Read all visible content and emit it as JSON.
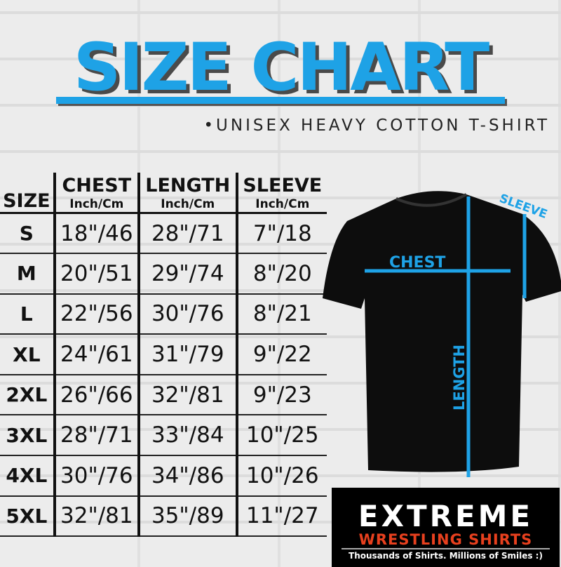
{
  "title": "SIZE CHART",
  "subtitle": "•UNISEX HEAVY COTTON T-SHIRT",
  "accent_color": "#1ea2e6",
  "table": {
    "size_header": "SIZE",
    "columns": [
      {
        "label": "CHEST",
        "unit": "Inch/Cm"
      },
      {
        "label": "LENGTH",
        "unit": "Inch/Cm"
      },
      {
        "label": "SLEEVE",
        "unit": "Inch/Cm"
      }
    ],
    "rows": [
      {
        "size": "S",
        "chest": "18\"/46",
        "length": "28\"/71",
        "sleeve": "7\"/18"
      },
      {
        "size": "M",
        "chest": "20\"/51",
        "length": "29\"/74",
        "sleeve": "8\"/20"
      },
      {
        "size": "L",
        "chest": "22\"/56",
        "length": "30\"/76",
        "sleeve": "8\"/21"
      },
      {
        "size": "XL",
        "chest": "24\"/61",
        "length": "31\"/79",
        "sleeve": "9\"/22"
      },
      {
        "size": "2XL",
        "chest": "26\"/66",
        "length": "32\"/81",
        "sleeve": "9\"/23"
      },
      {
        "size": "3XL",
        "chest": "28\"/71",
        "length": "33\"/84",
        "sleeve": "10\"/25"
      },
      {
        "size": "4XL",
        "chest": "30\"/76",
        "length": "34\"/86",
        "sleeve": "10\"/26"
      },
      {
        "size": "5XL",
        "chest": "32\"/81",
        "length": "35\"/89",
        "sleeve": "11\"/27"
      }
    ]
  },
  "diagram": {
    "chest": "CHEST",
    "length": "LENGTH",
    "sleeve": "SLEEVE"
  },
  "logo": {
    "line1": "EXTREME",
    "line2": "WRESTLING SHIRTS",
    "tagline": "Thousands of Shirts. Millions of Smiles :)"
  }
}
